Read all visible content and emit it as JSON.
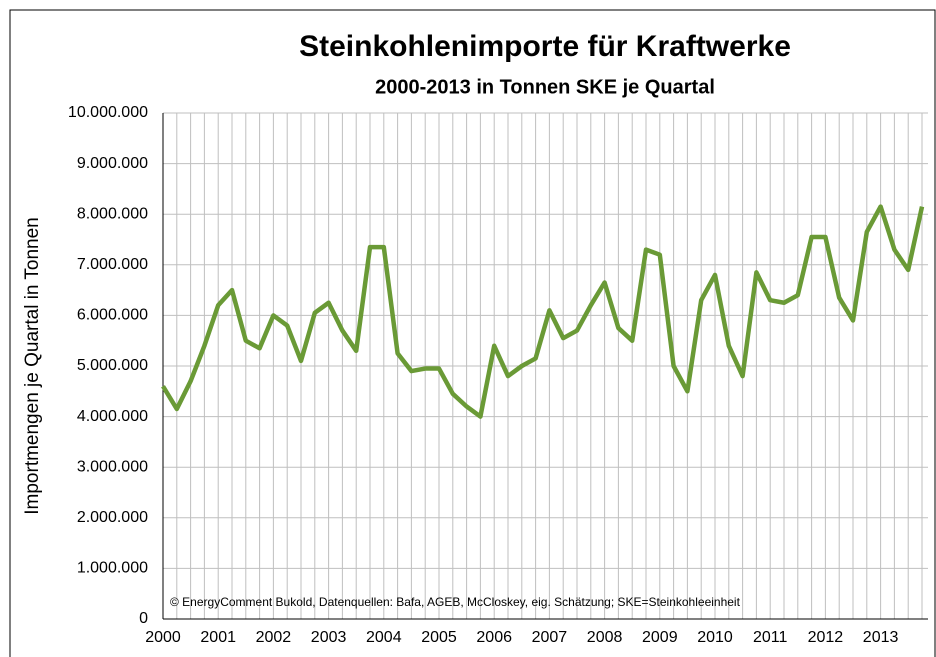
{
  "chart_data": {
    "type": "line",
    "title": "Steinkohlenimporte für Kraftwerke",
    "subtitle": "2000-2013 in Tonnen SKE je Quartal",
    "y_label": "Importmengen je Quartal in Tonnen",
    "annotation": "© EnergyComment Bukold, Datenquellen: Bafa, AGEB, McCloskey, eig. Schätzung; SKE=Steinkohleeinheit",
    "categories": [
      "2000",
      null,
      null,
      null,
      "2001",
      null,
      null,
      null,
      "2002",
      null,
      null,
      null,
      "2003",
      null,
      null,
      null,
      "2004",
      null,
      null,
      null,
      "2005",
      null,
      null,
      null,
      "2006",
      null,
      null,
      null,
      "2007",
      null,
      null,
      null,
      "2008",
      null,
      null,
      null,
      "2009",
      null,
      null,
      null,
      "2010",
      null,
      null,
      null,
      "2011",
      null,
      null,
      null,
      "2012",
      null,
      null,
      null,
      "2013",
      null,
      null,
      null
    ],
    "series": [
      {
        "name": "Steinkohlenimporte",
        "color": "#6a9a36",
        "values": [
          4600000,
          4150000,
          4700000,
          5400000,
          6200000,
          6500000,
          5500000,
          5350000,
          6000000,
          5800000,
          5100000,
          6050000,
          6250000,
          5700000,
          5300000,
          7350000,
          7350000,
          5250000,
          4900000,
          4950000,
          4950000,
          4450000,
          4200000,
          4000000,
          5400000,
          4800000,
          5000000,
          5150000,
          6100000,
          5550000,
          5700000,
          6200000,
          6650000,
          5750000,
          5500000,
          7300000,
          7200000,
          5000000,
          4500000,
          6300000,
          6800000,
          5400000,
          4800000,
          6850000,
          6300000,
          6250000,
          6400000,
          7550000,
          7550000,
          6350000,
          5900000,
          7650000,
          8150000,
          7300000,
          6900000,
          8150000
        ]
      }
    ],
    "ylim": [
      0,
      10000000
    ],
    "yticks": [
      0,
      {
        "value": 1000000,
        "label": "1.000.000"
      },
      {
        "value": 2000000,
        "label": "2.000.000"
      },
      {
        "value": 3000000,
        "label": "3.000.000"
      },
      {
        "value": 4000000,
        "label": "4.000.000"
      },
      {
        "value": 5000000,
        "label": "5.000.000"
      },
      {
        "value": 6000000,
        "label": "6.000.000"
      },
      {
        "value": 7000000,
        "label": "7.000.000"
      },
      {
        "value": 8000000,
        "label": "8.000.000"
      },
      {
        "value": 9000000,
        "label": "9.000.000"
      },
      {
        "value": 10000000,
        "label": "10.000.000"
      }
    ],
    "grid": true
  }
}
